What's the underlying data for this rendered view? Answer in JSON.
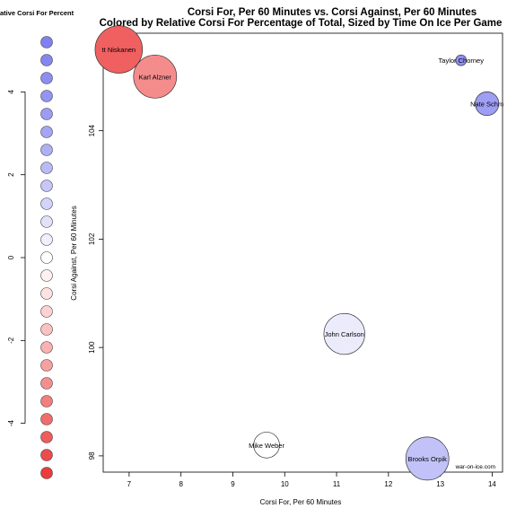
{
  "chart_data": {
    "type": "scatter",
    "title": "Corsi For, Per 60 Minutes vs. Corsi Against, Per 60 Minutes",
    "subtitle": "Colored by Relative Corsi For Percentage of Total, Sized by Time On Ice Per Game",
    "xlabel": "Corsi For, Per 60 Minutes",
    "ylabel": "Corsi Against, Per 60 Minutes",
    "xlim": [
      6.5,
      14.2
    ],
    "ylim": [
      97.7,
      105.8
    ],
    "x_ticks": [
      7,
      8,
      9,
      10,
      11,
      12,
      13,
      14
    ],
    "y_ticks": [
      98,
      100,
      102,
      104
    ],
    "grid": false,
    "credit": "war-on-ice.com",
    "points": [
      {
        "label": "tt Niskanen",
        "x": 6.8,
        "y": 105.5,
        "toi": 22.5,
        "rel_cf": -4.6,
        "color": "#f06060"
      },
      {
        "label": "Karl Alzner",
        "x": 7.5,
        "y": 105.0,
        "toi": 21.5,
        "rel_cf": -3.8,
        "color": "#f58c8c"
      },
      {
        "label": "Taylor Chorney",
        "x": 13.4,
        "y": 105.3,
        "toi": 14.0,
        "rel_cf": 4.5,
        "color": "#8f8ff2"
      },
      {
        "label": "Nate Schm",
        "x": 13.9,
        "y": 104.5,
        "toi": 17.0,
        "rel_cf": 4.0,
        "color": "#9e9ef4"
      },
      {
        "label": "John Carlson",
        "x": 11.15,
        "y": 100.25,
        "toi": 21.0,
        "rel_cf": 0.8,
        "color": "#ebebfc"
      },
      {
        "label": "Mike Weber",
        "x": 9.65,
        "y": 98.2,
        "toi": 17.5,
        "rel_cf": 0.0,
        "color": "#ffffff"
      },
      {
        "label": "Brooks Orpik",
        "x": 12.75,
        "y": 97.95,
        "toi": 21.5,
        "rel_cf": 2.0,
        "color": "#c2c2f8"
      }
    ]
  },
  "legend": {
    "title": "ative Corsi For Percent",
    "ticks": [
      "4",
      "2",
      "0",
      "-2",
      "-4"
    ],
    "tick_values": [
      4,
      2,
      0,
      -2,
      -4
    ],
    "range": [
      -5.2,
      5.2
    ],
    "colors": [
      "#8080f0",
      "#8686f1",
      "#8d8df2",
      "#9494f3",
      "#9c9cf4",
      "#a5a5f5",
      "#afaff6",
      "#babaf8",
      "#c6c6f9",
      "#d3d3fb",
      "#e1e1fc",
      "#efeffe",
      "#ffffff",
      "#fff1f1",
      "#ffe2e2",
      "#fdd2d2",
      "#fbc2c2",
      "#f9b1b1",
      "#f7a0a0",
      "#f48f8f",
      "#f27e7e",
      "#f06d6d",
      "#ee5c5c",
      "#ec4c4c",
      "#ea3c3c"
    ]
  }
}
